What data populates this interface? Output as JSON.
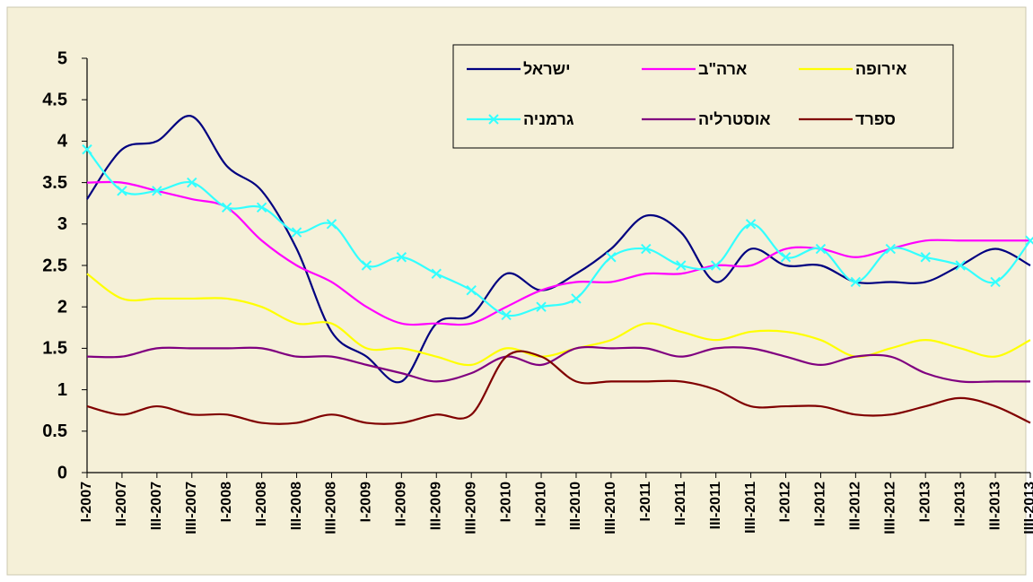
{
  "chart_data": {
    "type": "line",
    "categories": [
      "I-2007",
      "II-2007",
      "III-2007",
      "IIII-2007",
      "I-2008",
      "II-2008",
      "III-2008",
      "IIII-2008",
      "I-2009",
      "II-2009",
      "III-2009",
      "IIII-2009",
      "I-2010",
      "II-2010",
      "III-2010",
      "IIII-2010",
      "I-2011",
      "II-2011",
      "III-2011",
      "IIII-2011",
      "I-2012",
      "II-2012",
      "III-2012",
      "IIII-2012",
      "I-2013",
      "II-2013",
      "III-2013",
      "IIII-2013"
    ],
    "series": [
      {
        "name": "ישראל",
        "color": "#000080",
        "values": [
          3.3,
          3.9,
          4.0,
          4.3,
          3.7,
          3.4,
          2.7,
          1.7,
          1.4,
          1.1,
          1.8,
          1.9,
          2.4,
          2.2,
          2.4,
          2.7,
          3.1,
          2.9,
          2.3,
          2.7,
          2.5,
          2.5,
          2.3,
          2.3,
          2.3,
          2.5,
          2.7,
          2.5
        ]
      },
      {
        "name": "ארה\"ב",
        "color": "#ff00ff",
        "values": [
          3.5,
          3.5,
          3.4,
          3.3,
          3.2,
          2.8,
          2.5,
          2.3,
          2.0,
          1.8,
          1.8,
          1.8,
          2.0,
          2.2,
          2.3,
          2.3,
          2.4,
          2.4,
          2.5,
          2.5,
          2.7,
          2.7,
          2.6,
          2.7,
          2.8,
          2.8,
          2.8,
          2.8
        ]
      },
      {
        "name": "אירופה",
        "color": "#ffff00",
        "values": [
          2.4,
          2.1,
          2.1,
          2.1,
          2.1,
          2.0,
          1.8,
          1.8,
          1.5,
          1.5,
          1.4,
          1.3,
          1.5,
          1.4,
          1.5,
          1.6,
          1.8,
          1.7,
          1.6,
          1.7,
          1.7,
          1.6,
          1.4,
          1.5,
          1.6,
          1.5,
          1.4,
          1.6
        ]
      },
      {
        "name": "גרמניה",
        "color": "#33ffff",
        "marker": "x",
        "values": [
          3.9,
          3.4,
          3.4,
          3.5,
          3.2,
          3.2,
          2.9,
          3.0,
          2.5,
          2.6,
          2.4,
          2.2,
          1.9,
          2.0,
          2.1,
          2.6,
          2.7,
          2.5,
          2.5,
          3.0,
          2.6,
          2.7,
          2.3,
          2.7,
          2.6,
          2.5,
          2.3,
          2.8
        ]
      },
      {
        "name": "אוסטרליה",
        "color": "#800080",
        "values": [
          1.4,
          1.4,
          1.5,
          1.5,
          1.5,
          1.5,
          1.4,
          1.4,
          1.3,
          1.2,
          1.1,
          1.2,
          1.4,
          1.3,
          1.5,
          1.5,
          1.5,
          1.4,
          1.5,
          1.5,
          1.4,
          1.3,
          1.4,
          1.4,
          1.2,
          1.1,
          1.1,
          1.1
        ]
      },
      {
        "name": "ספרד",
        "color": "#800000",
        "values": [
          0.8,
          0.7,
          0.8,
          0.7,
          0.7,
          0.6,
          0.6,
          0.7,
          0.6,
          0.6,
          0.7,
          0.7,
          1.4,
          1.4,
          1.1,
          1.1,
          1.1,
          1.1,
          1.0,
          0.8,
          0.8,
          0.8,
          0.7,
          0.7,
          0.8,
          0.9,
          0.8,
          0.6
        ]
      }
    ],
    "ylim": [
      0,
      5
    ],
    "yticks": [
      0,
      0.5,
      1,
      1.5,
      2,
      2.5,
      3,
      3.5,
      4,
      4.5,
      5
    ],
    "grid": false,
    "legend": "top-right",
    "background": "#f5f0d8"
  }
}
